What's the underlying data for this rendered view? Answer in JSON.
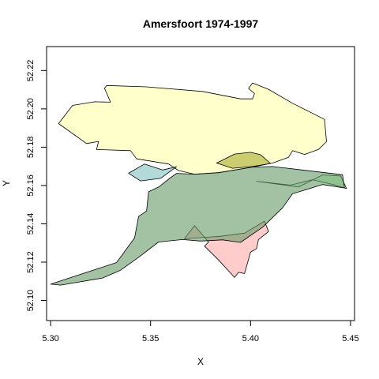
{
  "chart_data": {
    "type": "map",
    "title": "Amersfoort 1974-1997",
    "xlabel": "X",
    "ylabel": "Y",
    "xlim": [
      5.298,
      5.452
    ],
    "ylim": [
      52.0895,
      52.2325
    ],
    "xticks": [
      "5.30",
      "5.35",
      "5.40",
      "5.45"
    ],
    "yticks": [
      "52.10",
      "52.12",
      "52.14",
      "52.16",
      "52.18",
      "52.20",
      "52.22"
    ],
    "grid": false,
    "legend": "none",
    "series": [
      {
        "color": "#ffffcc",
        "opacity": 1.0,
        "points": [
          [
            5.328,
            52.2122
          ],
          [
            5.348,
            52.2115
          ],
          [
            5.376,
            52.2091
          ],
          [
            5.395,
            52.2052
          ],
          [
            5.401,
            52.2052
          ],
          [
            5.402,
            52.208
          ],
          [
            5.399,
            52.2107
          ],
          [
            5.401,
            52.2135
          ],
          [
            5.409,
            52.2102
          ],
          [
            5.421,
            52.2029
          ],
          [
            5.437,
            52.1945
          ],
          [
            5.438,
            52.1829
          ],
          [
            5.434,
            52.1788
          ],
          [
            5.427,
            52.1762
          ],
          [
            5.421,
            52.1782
          ],
          [
            5.419,
            52.1747
          ],
          [
            5.411,
            52.1717
          ],
          [
            5.401,
            52.1696
          ],
          [
            5.384,
            52.1667
          ],
          [
            5.372,
            52.1659
          ],
          [
            5.364,
            52.1678
          ],
          [
            5.359,
            52.1712
          ],
          [
            5.343,
            52.1739
          ],
          [
            5.34,
            52.1782
          ],
          [
            5.323,
            52.1788
          ],
          [
            5.324,
            52.183
          ],
          [
            5.318,
            52.1819
          ],
          [
            5.304,
            52.1923
          ],
          [
            5.311,
            52.2018
          ],
          [
            5.322,
            52.2037
          ],
          [
            5.33,
            52.2035
          ],
          [
            5.327,
            52.2107
          ]
        ]
      },
      {
        "color": "#ffcccc",
        "opacity": 1.0,
        "points": [
          [
            5.367,
            52.1322
          ],
          [
            5.372,
            52.1391
          ],
          [
            5.379,
            52.1305
          ],
          [
            5.377,
            52.1283
          ],
          [
            5.384,
            52.1211
          ],
          [
            5.392,
            52.112
          ],
          [
            5.394,
            52.1147
          ],
          [
            5.397,
            52.114
          ],
          [
            5.4,
            52.1252
          ],
          [
            5.403,
            52.1271
          ],
          [
            5.404,
            52.1318
          ],
          [
            5.409,
            52.136
          ],
          [
            5.407,
            52.1414
          ],
          [
            5.397,
            52.1351
          ],
          [
            5.385,
            52.1335
          ]
        ]
      },
      {
        "color": "#ccffcc",
        "opacity": 1.0,
        "points": [
          [
            5.403,
            52.1622
          ],
          [
            5.424,
            52.1592
          ],
          [
            5.436,
            52.1655
          ],
          [
            5.445,
            52.165
          ],
          [
            5.448,
            52.1584
          ],
          [
            5.441,
            52.1606
          ],
          [
            5.431,
            52.163
          ],
          [
            5.42,
            52.1602
          ]
        ]
      },
      {
        "color": "#99cccc",
        "opacity": 0.75,
        "points": [
          [
            5.339,
            52.1664
          ],
          [
            5.347,
            52.1712
          ],
          [
            5.356,
            52.1681
          ],
          [
            5.363,
            52.1698
          ],
          [
            5.355,
            52.1637
          ],
          [
            5.345,
            52.1624
          ]
        ]
      },
      {
        "color": "#669966",
        "opacity": 0.6,
        "points": [
          [
            5.3,
            52.1085
          ],
          [
            5.333,
            52.1198
          ],
          [
            5.342,
            52.1326
          ],
          [
            5.344,
            52.1438
          ],
          [
            5.348,
            52.1467
          ],
          [
            5.349,
            52.1567
          ],
          [
            5.354,
            52.1592
          ],
          [
            5.36,
            52.1641
          ],
          [
            5.363,
            52.1663
          ],
          [
            5.372,
            52.1659
          ],
          [
            5.384,
            52.1667
          ],
          [
            5.401,
            52.1696
          ],
          [
            5.411,
            52.1699
          ],
          [
            5.426,
            52.1681
          ],
          [
            5.446,
            52.1656
          ],
          [
            5.447,
            52.1587
          ],
          [
            5.436,
            52.1605
          ],
          [
            5.421,
            52.1557
          ],
          [
            5.416,
            52.1483
          ],
          [
            5.406,
            52.1382
          ],
          [
            5.395,
            52.1303
          ],
          [
            5.386,
            52.1316
          ],
          [
            5.375,
            52.131
          ],
          [
            5.366,
            52.1318
          ],
          [
            5.354,
            52.1305
          ],
          [
            5.344,
            52.1225
          ],
          [
            5.335,
            52.1158
          ],
          [
            5.326,
            52.1117
          ],
          [
            5.305,
            52.108
          ]
        ]
      },
      {
        "color": "#aaaa33",
        "opacity": 0.6,
        "points": [
          [
            5.383,
            52.1717
          ],
          [
            5.392,
            52.1764
          ],
          [
            5.4,
            52.1773
          ],
          [
            5.405,
            52.1761
          ],
          [
            5.41,
            52.1715
          ],
          [
            5.401,
            52.1699
          ],
          [
            5.391,
            52.169
          ]
        ]
      }
    ]
  }
}
